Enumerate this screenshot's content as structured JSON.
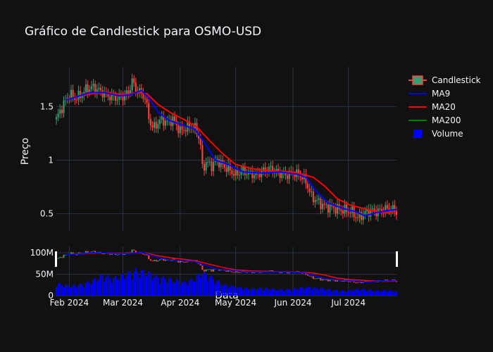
{
  "chart_data": {
    "type": "candlestick",
    "title": "Gráfico de Candlestick para OSMO-USD",
    "ylabel": "Preço",
    "xlabel": "Data",
    "x_ticks": [
      "Feb 2024",
      "Mar 2024",
      "Apr 2024",
      "May 2024",
      "Jun 2024",
      "Jul 2024"
    ],
    "x_tick_dates": [
      "2024-02-01",
      "2024-03-01",
      "2024-04-01",
      "2024-05-01",
      "2024-06-01",
      "2024-07-01"
    ],
    "x_range": [
      "2024-01-25",
      "2024-07-27"
    ],
    "price_ticks": [
      0.5,
      1,
      1.5
    ],
    "price_tick_labels": [
      "0.5",
      "1",
      "1.5"
    ],
    "price_range": [
      0.34,
      1.87
    ],
    "volume_ticks": [
      0,
      50000000,
      100000000
    ],
    "volume_tick_labels": [
      "0",
      "50M",
      "100M"
    ],
    "volume_range": [
      0,
      115000000
    ],
    "legend_position": "top-right",
    "grid": true,
    "colors": {
      "increasing": "#3d9970",
      "decreasing": "#ff4136",
      "ma9": "#0000ff",
      "ma20": "#ff0000",
      "ma200": "#008000",
      "volume": "#0000ff",
      "background": "#111111",
      "grid": "#283442"
    },
    "series": [
      {
        "name": "Candlestick",
        "kind": "ohlc"
      },
      {
        "name": "MA9",
        "kind": "line"
      },
      {
        "name": "MA20",
        "kind": "line"
      },
      {
        "name": "MA200",
        "kind": "line"
      },
      {
        "name": "Volume",
        "kind": "bar"
      }
    ],
    "close_path": [
      [
        "2024-01-25",
        1.38
      ],
      [
        "2024-01-27",
        1.46
      ],
      [
        "2024-01-30",
        1.55
      ],
      [
        "2024-02-01",
        1.62
      ],
      [
        "2024-02-04",
        1.58
      ],
      [
        "2024-02-07",
        1.6
      ],
      [
        "2024-02-10",
        1.66
      ],
      [
        "2024-02-14",
        1.68
      ],
      [
        "2024-02-18",
        1.64
      ],
      [
        "2024-02-22",
        1.6
      ],
      [
        "2024-02-26",
        1.58
      ],
      [
        "2024-03-01",
        1.59
      ],
      [
        "2024-03-04",
        1.63
      ],
      [
        "2024-03-06",
        1.74
      ],
      [
        "2024-03-08",
        1.66
      ],
      [
        "2024-03-11",
        1.62
      ],
      [
        "2024-03-13",
        1.58
      ],
      [
        "2024-03-15",
        1.4
      ],
      [
        "2024-03-17",
        1.3
      ],
      [
        "2024-03-19",
        1.33
      ],
      [
        "2024-03-22",
        1.38
      ],
      [
        "2024-03-25",
        1.35
      ],
      [
        "2024-03-28",
        1.38
      ],
      [
        "2024-04-01",
        1.27
      ],
      [
        "2024-04-04",
        1.3
      ],
      [
        "2024-04-07",
        1.32
      ],
      [
        "2024-04-10",
        1.28
      ],
      [
        "2024-04-12",
        1.14
      ],
      [
        "2024-04-13",
        0.92
      ],
      [
        "2024-04-15",
        0.98
      ],
      [
        "2024-04-18",
        0.95
      ],
      [
        "2024-04-21",
        1.0
      ],
      [
        "2024-04-24",
        0.95
      ],
      [
        "2024-04-27",
        0.92
      ],
      [
        "2024-05-01",
        0.86
      ],
      [
        "2024-05-04",
        0.9
      ],
      [
        "2024-05-08",
        0.88
      ],
      [
        "2024-05-12",
        0.86
      ],
      [
        "2024-05-16",
        0.9
      ],
      [
        "2024-05-20",
        0.92
      ],
      [
        "2024-05-24",
        0.88
      ],
      [
        "2024-05-28",
        0.86
      ],
      [
        "2024-06-01",
        0.88
      ],
      [
        "2024-06-05",
        0.86
      ],
      [
        "2024-06-08",
        0.8
      ],
      [
        "2024-06-11",
        0.66
      ],
      [
        "2024-06-14",
        0.62
      ],
      [
        "2024-06-18",
        0.57
      ],
      [
        "2024-06-22",
        0.56
      ],
      [
        "2024-06-26",
        0.54
      ],
      [
        "2024-06-30",
        0.53
      ],
      [
        "2024-07-03",
        0.52
      ],
      [
        "2024-07-06",
        0.46
      ],
      [
        "2024-07-09",
        0.5
      ],
      [
        "2024-07-13",
        0.53
      ],
      [
        "2024-07-17",
        0.52
      ],
      [
        "2024-07-20",
        0.54
      ],
      [
        "2024-07-24",
        0.55
      ],
      [
        "2024-07-27",
        0.52
      ]
    ],
    "ma9_path": [
      [
        "2024-01-30",
        1.56
      ],
      [
        "2024-02-05",
        1.59
      ],
      [
        "2024-02-12",
        1.63
      ],
      [
        "2024-02-20",
        1.63
      ],
      [
        "2024-02-28",
        1.6
      ],
      [
        "2024-03-05",
        1.61
      ],
      [
        "2024-03-11",
        1.65
      ],
      [
        "2024-03-15",
        1.58
      ],
      [
        "2024-03-20",
        1.45
      ],
      [
        "2024-03-26",
        1.37
      ],
      [
        "2024-04-02",
        1.33
      ],
      [
        "2024-04-09",
        1.29
      ],
      [
        "2024-04-15",
        1.14
      ],
      [
        "2024-04-20",
        1.0
      ],
      [
        "2024-04-27",
        0.96
      ],
      [
        "2024-05-05",
        0.89
      ],
      [
        "2024-05-15",
        0.88
      ],
      [
        "2024-05-25",
        0.89
      ],
      [
        "2024-06-03",
        0.87
      ],
      [
        "2024-06-08",
        0.84
      ],
      [
        "2024-06-13",
        0.72
      ],
      [
        "2024-06-20",
        0.6
      ],
      [
        "2024-06-28",
        0.55
      ],
      [
        "2024-07-05",
        0.52
      ],
      [
        "2024-07-10",
        0.48
      ],
      [
        "2024-07-16",
        0.51
      ],
      [
        "2024-07-22",
        0.53
      ],
      [
        "2024-07-27",
        0.54
      ]
    ],
    "ma20_path": [
      [
        "2024-02-06",
        1.6
      ],
      [
        "2024-02-14",
        1.62
      ],
      [
        "2024-02-22",
        1.63
      ],
      [
        "2024-03-01",
        1.61
      ],
      [
        "2024-03-08",
        1.63
      ],
      [
        "2024-03-14",
        1.62
      ],
      [
        "2024-03-20",
        1.52
      ],
      [
        "2024-03-27",
        1.44
      ],
      [
        "2024-04-03",
        1.38
      ],
      [
        "2024-04-10",
        1.31
      ],
      [
        "2024-04-17",
        1.18
      ],
      [
        "2024-04-24",
        1.06
      ],
      [
        "2024-05-01",
        0.96
      ],
      [
        "2024-05-10",
        0.92
      ],
      [
        "2024-05-20",
        0.9
      ],
      [
        "2024-05-30",
        0.89
      ],
      [
        "2024-06-06",
        0.87
      ],
      [
        "2024-06-12",
        0.84
      ],
      [
        "2024-06-18",
        0.76
      ],
      [
        "2024-06-25",
        0.64
      ],
      [
        "2024-07-02",
        0.58
      ],
      [
        "2024-07-09",
        0.55
      ],
      [
        "2024-07-16",
        0.52
      ],
      [
        "2024-07-22",
        0.51
      ],
      [
        "2024-07-27",
        0.52
      ]
    ],
    "volume_path": [
      [
        "2024-01-25",
        26000000
      ],
      [
        "2024-02-01",
        20000000
      ],
      [
        "2024-02-08",
        24000000
      ],
      [
        "2024-02-14",
        32000000
      ],
      [
        "2024-02-19",
        42000000
      ],
      [
        "2024-02-25",
        36000000
      ],
      [
        "2024-03-02",
        44000000
      ],
      [
        "2024-03-08",
        52000000
      ],
      [
        "2024-03-14",
        48000000
      ],
      [
        "2024-03-20",
        38000000
      ],
      [
        "2024-03-27",
        34000000
      ],
      [
        "2024-04-03",
        28000000
      ],
      [
        "2024-04-08",
        34000000
      ],
      [
        "2024-04-13",
        50000000
      ],
      [
        "2024-04-18",
        38000000
      ],
      [
        "2024-04-25",
        22000000
      ],
      [
        "2024-05-02",
        18000000
      ],
      [
        "2024-05-10",
        14000000
      ],
      [
        "2024-05-17",
        16000000
      ],
      [
        "2024-05-24",
        12000000
      ],
      [
        "2024-06-01",
        14000000
      ],
      [
        "2024-06-08",
        18000000
      ],
      [
        "2024-06-14",
        16000000
      ],
      [
        "2024-06-22",
        12000000
      ],
      [
        "2024-06-30",
        10000000
      ],
      [
        "2024-07-07",
        14000000
      ],
      [
        "2024-07-15",
        10000000
      ],
      [
        "2024-07-22",
        11000000
      ],
      [
        "2024-07-27",
        9000000
      ]
    ]
  },
  "legend": [
    {
      "label": "Candlestick",
      "icon": "candlestick-swatch"
    },
    {
      "label": "MA9",
      "icon": "line-swatch"
    },
    {
      "label": "MA20",
      "icon": "line-swatch"
    },
    {
      "label": "MA200",
      "icon": "line-swatch"
    },
    {
      "label": "Volume",
      "icon": "square-swatch"
    }
  ]
}
